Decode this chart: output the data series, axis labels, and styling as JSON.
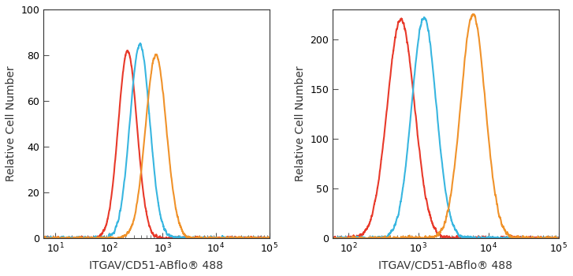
{
  "panel1": {
    "xlim": [
      6,
      100000.0
    ],
    "ylim": [
      0,
      100
    ],
    "yticks": [
      0,
      20,
      40,
      60,
      80,
      100
    ],
    "xtick_vals": [
      10,
      100,
      1000,
      10000,
      100000
    ],
    "xtick_labels": [
      "10$^1$",
      "10$^2$",
      "10$^3$",
      "10$^4$",
      "10$^5$"
    ],
    "ylabel": "Relative Cell Number",
    "xlabel": "ITGAV/CD51-ABflo® 488",
    "curves": [
      {
        "color": "#e8392a",
        "mu": 2.35,
        "sigma": 0.175,
        "scale": 82
      },
      {
        "color": "#38b6e0",
        "mu": 2.58,
        "sigma": 0.185,
        "scale": 85
      },
      {
        "color": "#f0922a",
        "mu": 2.88,
        "sigma": 0.195,
        "scale": 80
      }
    ]
  },
  "panel2": {
    "xlim": [
      60,
      100000.0
    ],
    "ylim": [
      0,
      230
    ],
    "yticks": [
      0,
      50,
      100,
      150,
      200
    ],
    "xtick_vals": [
      100,
      1000,
      10000,
      100000
    ],
    "xtick_labels": [
      "10$^2$",
      "10$^3$",
      "10$^4$",
      "10$^5$"
    ],
    "ylabel": "Relative Cell Number",
    "xlabel": "ITGAV/CD51-ABflo® 488",
    "curves": [
      {
        "color": "#e8392a",
        "mu": 2.75,
        "sigma": 0.195,
        "scale": 220
      },
      {
        "color": "#38b6e0",
        "mu": 3.08,
        "sigma": 0.175,
        "scale": 222
      },
      {
        "color": "#f0922a",
        "mu": 3.78,
        "sigma": 0.175,
        "scale": 225
      }
    ]
  },
  "bg_color": "#ffffff",
  "axes_color": "#333333",
  "tick_color": "#555555",
  "linewidth": 1.5,
  "font_size": 9,
  "label_font_size": 10
}
